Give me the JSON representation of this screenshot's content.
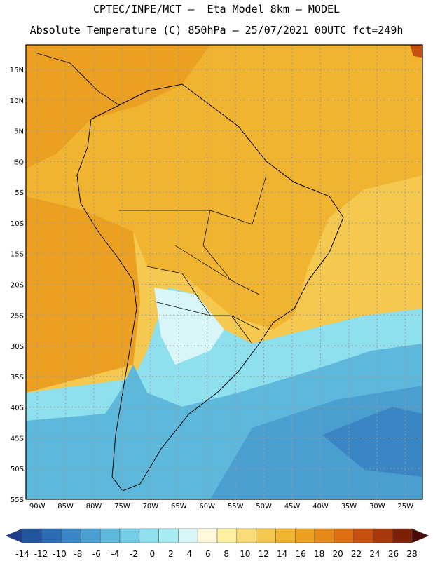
{
  "header": {
    "line1": "CPTEC/INPE/MCT –  Eta Model 8km – MODEL",
    "line2": "Absolute Temperature (C) 850hPa – 25/07/2021 00UTC fct=249h"
  },
  "map": {
    "lat_labels": [
      "15N",
      "10N",
      "5N",
      "EQ",
      "5S",
      "10S",
      "15S",
      "20S",
      "25S",
      "30S",
      "35S",
      "40S",
      "45S",
      "50S",
      "55S"
    ],
    "lon_labels": [
      "90W",
      "85W",
      "80W",
      "75W",
      "70W",
      "65W",
      "60W",
      "55W",
      "50W",
      "45W",
      "40W",
      "35W",
      "30W",
      "25W"
    ],
    "lat_values": [
      15,
      10,
      5,
      0,
      -5,
      -10,
      -15,
      -20,
      -25,
      -30,
      -35,
      -40,
      -45,
      -50,
      -55
    ],
    "lon_values": [
      -90,
      -85,
      -80,
      -75,
      -70,
      -65,
      -60,
      -55,
      -50,
      -45,
      -40,
      -35,
      -30,
      -25
    ]
  },
  "colorbar": {
    "labels": [
      "-14",
      "-12",
      "-10",
      "-8",
      "-6",
      "-4",
      "-2",
      "0",
      "2",
      "4",
      "6",
      "8",
      "10",
      "12",
      "14",
      "16",
      "18",
      "20",
      "22",
      "24",
      "26",
      "28"
    ],
    "colors": [
      "#1e3c8c",
      "#2255a0",
      "#2a6cb4",
      "#3a85c4",
      "#4b9fd0",
      "#5eb8dc",
      "#74cfe6",
      "#8ee0ee",
      "#a6ecf2",
      "#d8f6f8",
      "#fff8dc",
      "#fdf0a0",
      "#f9dc78",
      "#f5c850",
      "#f0b430",
      "#eba022",
      "#e58a18",
      "#dd6e12",
      "#c8500e",
      "#a8380a",
      "#7c2008",
      "#4a0a0a"
    ]
  }
}
